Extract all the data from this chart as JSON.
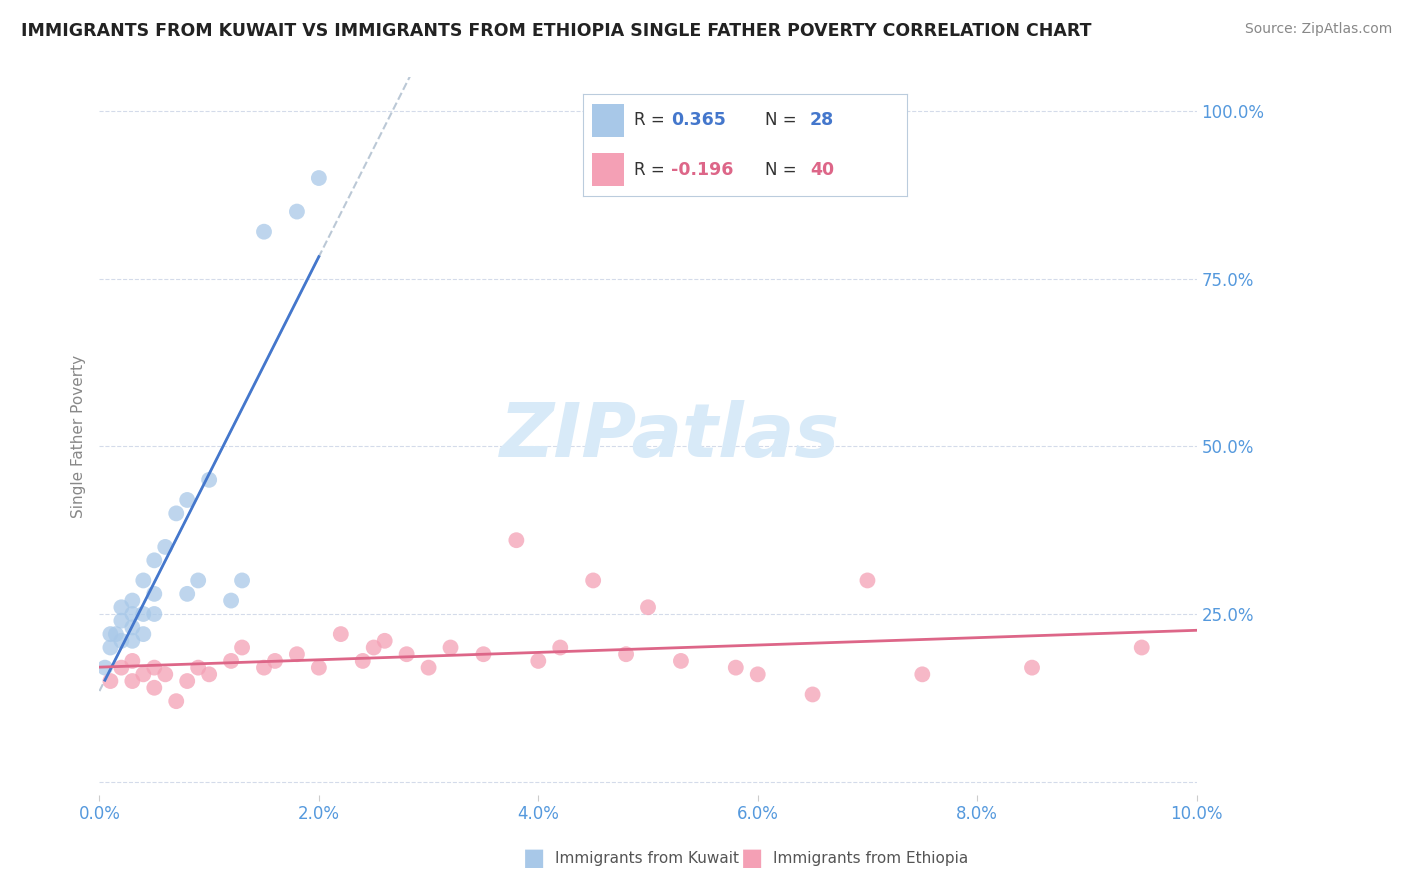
{
  "title": "IMMIGRANTS FROM KUWAIT VS IMMIGRANTS FROM ETHIOPIA SINGLE FATHER POVERTY CORRELATION CHART",
  "source": "Source: ZipAtlas.com",
  "ylabel": "Single Father Poverty",
  "legend_labels": [
    "Immigrants from Kuwait",
    "Immigrants from Ethiopia"
  ],
  "kuwait_R": 0.365,
  "kuwait_N": 28,
  "ethiopia_R": -0.196,
  "ethiopia_N": 40,
  "kuwait_color": "#a8c8e8",
  "ethiopia_color": "#f4a0b5",
  "kuwait_line_color": "#4477cc",
  "ethiopia_line_color": "#dd6688",
  "background_color": "#ffffff",
  "title_color": "#222222",
  "axis_color": "#5599dd",
  "watermark_color": "#d8eaf8",
  "xlim": [
    0.0,
    0.1
  ],
  "ylim": [
    -0.02,
    1.05
  ],
  "yticks": [
    0.0,
    0.25,
    0.5,
    0.75,
    1.0
  ],
  "ytick_labels": [
    "",
    "25.0%",
    "50.0%",
    "75.0%",
    "100.0%"
  ],
  "xticks": [
    0.0,
    0.02,
    0.04,
    0.06,
    0.08,
    0.1
  ],
  "xtick_labels": [
    "0.0%",
    "2.0%",
    "4.0%",
    "6.0%",
    "8.0%",
    "10.0%"
  ],
  "kuwait_x": [
    0.0005,
    0.001,
    0.001,
    0.0015,
    0.002,
    0.002,
    0.002,
    0.003,
    0.003,
    0.003,
    0.003,
    0.004,
    0.004,
    0.004,
    0.005,
    0.005,
    0.005,
    0.006,
    0.007,
    0.008,
    0.008,
    0.009,
    0.01,
    0.012,
    0.013,
    0.015,
    0.018,
    0.02
  ],
  "kuwait_y": [
    0.17,
    0.2,
    0.22,
    0.22,
    0.21,
    0.24,
    0.26,
    0.21,
    0.23,
    0.25,
    0.27,
    0.22,
    0.25,
    0.3,
    0.25,
    0.28,
    0.33,
    0.35,
    0.4,
    0.42,
    0.28,
    0.3,
    0.45,
    0.27,
    0.3,
    0.82,
    0.85,
    0.9
  ],
  "ethiopia_x": [
    0.001,
    0.002,
    0.003,
    0.003,
    0.004,
    0.005,
    0.005,
    0.006,
    0.007,
    0.008,
    0.009,
    0.01,
    0.012,
    0.013,
    0.015,
    0.016,
    0.018,
    0.02,
    0.022,
    0.024,
    0.025,
    0.026,
    0.028,
    0.03,
    0.032,
    0.035,
    0.038,
    0.04,
    0.042,
    0.045,
    0.048,
    0.05,
    0.053,
    0.058,
    0.06,
    0.065,
    0.07,
    0.075,
    0.085,
    0.095
  ],
  "ethiopia_y": [
    0.15,
    0.17,
    0.15,
    0.18,
    0.16,
    0.17,
    0.14,
    0.16,
    0.12,
    0.15,
    0.17,
    0.16,
    0.18,
    0.2,
    0.17,
    0.18,
    0.19,
    0.17,
    0.22,
    0.18,
    0.2,
    0.21,
    0.19,
    0.17,
    0.2,
    0.19,
    0.36,
    0.18,
    0.2,
    0.3,
    0.19,
    0.26,
    0.18,
    0.17,
    0.16,
    0.13,
    0.3,
    0.16,
    0.17,
    0.2
  ]
}
